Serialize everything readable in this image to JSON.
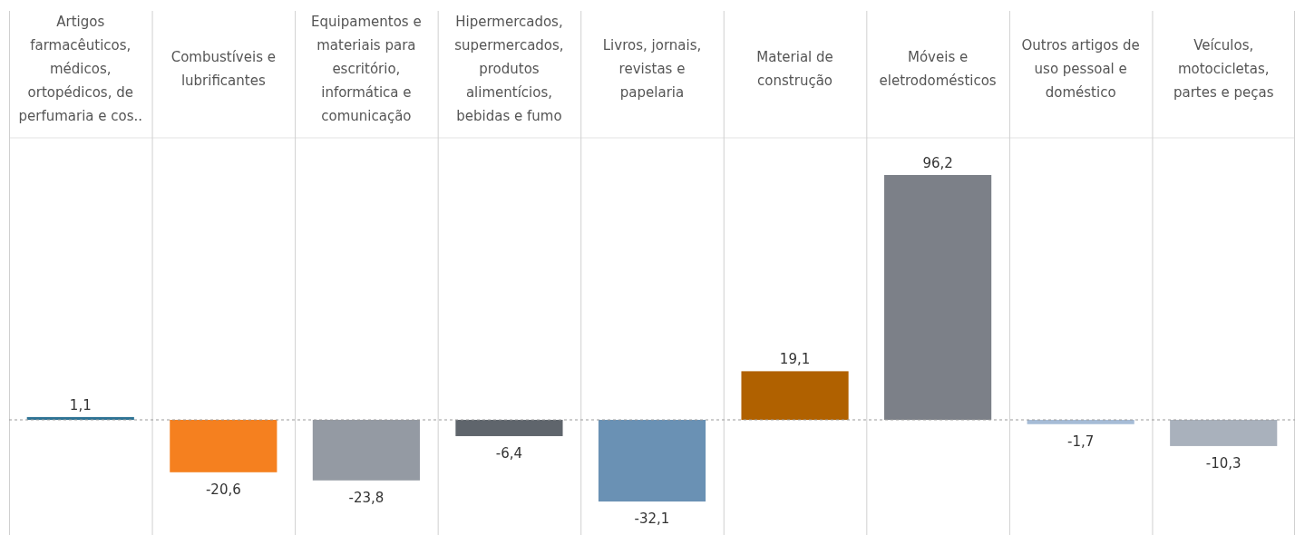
{
  "chart_data": {
    "type": "bar",
    "categories": [
      "Artigos farmacêuticos, médicos, ortopédicos, de perfumaria e cos..",
      "Combustíveis e lubrificantes",
      "Equipamentos e materiais para escritório, informática e comunicação",
      "Hipermercados, supermercados, produtos alimentícios, bebidas e fumo",
      "Livros, jornais, revistas e papelaria",
      "Material de construção",
      "Móveis e eletrodomésticos",
      "Outros artigos de uso pessoal e doméstico",
      "Veículos, motocicletas, partes e peças"
    ],
    "values": [
      1.1,
      -20.6,
      -23.8,
      -6.4,
      -32.1,
      19.1,
      96.2,
      -1.7,
      -10.3
    ],
    "colors": [
      "#2e7394",
      "#f5801f",
      "#949aa3",
      "#5f656c",
      "#6a91b4",
      "#b06100",
      "#7c8088",
      "#a6bcd6",
      "#a9b1bc"
    ],
    "ref_lines": [
      {
        "axis": "y",
        "value": 0,
        "color": "#9a9a9a",
        "line_style": "dashed"
      }
    ],
    "value_labels": [
      "1,1",
      "-20,6",
      "-23,8",
      "-6,4",
      "-32,1",
      "19,1",
      "96,2",
      "-1,7",
      "-10,3"
    ]
  }
}
